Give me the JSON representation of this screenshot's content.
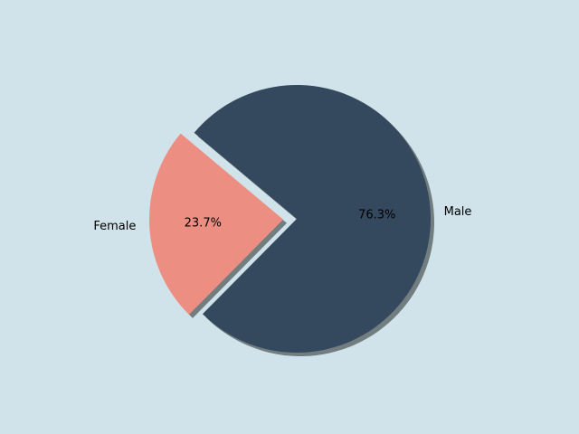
{
  "chart_data": {
    "type": "pie",
    "categories": [
      "Female",
      "Male"
    ],
    "values": [
      23.7,
      76.3
    ],
    "value_labels": [
      "23.7%",
      "76.3%"
    ],
    "colors": [
      "#ec8f82",
      "#34495e"
    ],
    "explode": [
      true,
      false
    ],
    "shadow": true
  }
}
